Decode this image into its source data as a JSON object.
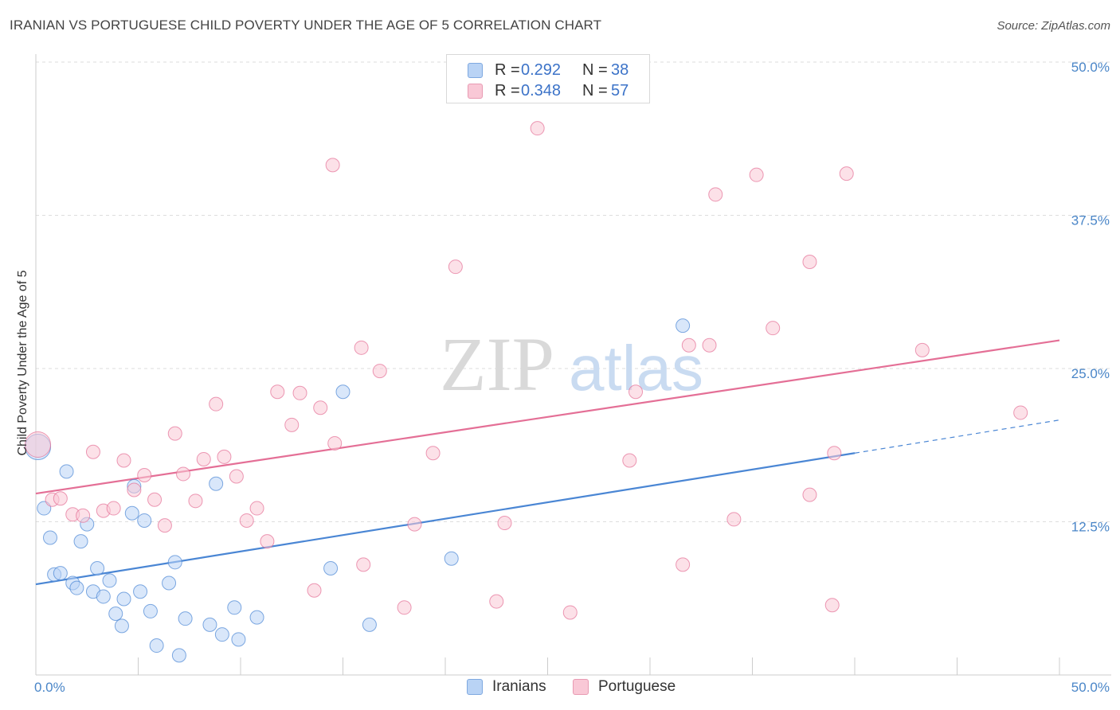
{
  "header": {
    "title": "IRANIAN VS PORTUGUESE CHILD POVERTY UNDER THE AGE OF 5 CORRELATION CHART",
    "source": "Source: ZipAtlas.com"
  },
  "watermark": {
    "zip": "ZIP",
    "atlas": "atlas"
  },
  "legend": {
    "r_label": "R =",
    "n_label": "N =",
    "entries": [
      {
        "name": "Iranians",
        "r": "0.292",
        "n": "38",
        "fill": "#b9d3f5",
        "stroke": "#7ea8e0"
      },
      {
        "name": "Portuguese",
        "r": "0.348",
        "n": "57",
        "fill": "#f9c8d6",
        "stroke": "#e89ab2"
      }
    ]
  },
  "chart_data": {
    "type": "scatter",
    "title": "IRANIAN VS PORTUGUESE CHILD POVERTY UNDER THE AGE OF 5 CORRELATION CHART",
    "xlabel": "",
    "ylabel": "Child Poverty Under the Age of 5",
    "xlim": [
      0,
      50
    ],
    "ylim": [
      0,
      50
    ],
    "x_tick_labels": [
      "0.0%",
      "50.0%"
    ],
    "y_ticks": [
      {
        "value": 12.5,
        "label": "12.5%"
      },
      {
        "value": 25,
        "label": "25.0%"
      },
      {
        "value": 37.5,
        "label": "37.5%"
      },
      {
        "value": 50,
        "label": "50.0%"
      }
    ],
    "grid": true,
    "series": [
      {
        "name": "Iranians",
        "color": "#4a86d4",
        "fill": "#b9d3f5",
        "trend": {
          "x0": 0,
          "y0": 7.4,
          "x1": 40,
          "y1": 18.1,
          "dash_to": 50,
          "dash_y": 20.8
        },
        "points": [
          {
            "x": 0.4,
            "y": 13.6
          },
          {
            "x": 0.7,
            "y": 11.2
          },
          {
            "x": 0.9,
            "y": 8.2
          },
          {
            "x": 1.2,
            "y": 8.3
          },
          {
            "x": 1.5,
            "y": 16.6
          },
          {
            "x": 1.8,
            "y": 7.5
          },
          {
            "x": 2.0,
            "y": 7.1
          },
          {
            "x": 2.2,
            "y": 10.9
          },
          {
            "x": 2.5,
            "y": 12.3
          },
          {
            "x": 2.8,
            "y": 6.8
          },
          {
            "x": 3.0,
            "y": 8.7
          },
          {
            "x": 3.3,
            "y": 6.4
          },
          {
            "x": 3.6,
            "y": 7.7
          },
          {
            "x": 3.9,
            "y": 5.0
          },
          {
            "x": 4.2,
            "y": 4.0
          },
          {
            "x": 4.3,
            "y": 6.2
          },
          {
            "x": 4.7,
            "y": 13.2
          },
          {
            "x": 4.8,
            "y": 15.4
          },
          {
            "x": 5.1,
            "y": 6.8
          },
          {
            "x": 5.3,
            "y": 12.6
          },
          {
            "x": 5.6,
            "y": 5.2
          },
          {
            "x": 5.9,
            "y": 2.4
          },
          {
            "x": 6.5,
            "y": 7.5
          },
          {
            "x": 6.8,
            "y": 9.2
          },
          {
            "x": 7.0,
            "y": 1.6
          },
          {
            "x": 7.3,
            "y": 4.6
          },
          {
            "x": 8.5,
            "y": 4.1
          },
          {
            "x": 8.8,
            "y": 15.6
          },
          {
            "x": 9.1,
            "y": 3.3
          },
          {
            "x": 9.7,
            "y": 5.5
          },
          {
            "x": 9.9,
            "y": 2.9
          },
          {
            "x": 10.8,
            "y": 4.7
          },
          {
            "x": 14.4,
            "y": 8.7
          },
          {
            "x": 15.0,
            "y": 23.1
          },
          {
            "x": 16.3,
            "y": 4.1
          },
          {
            "x": 20.3,
            "y": 9.5
          },
          {
            "x": 31.6,
            "y": 28.5
          },
          {
            "x": 0.1,
            "y": 18.6
          }
        ]
      },
      {
        "name": "Portuguese",
        "color": "#e46f96",
        "fill": "#f9c8d6",
        "trend": {
          "x0": 0,
          "y0": 14.8,
          "x1": 50,
          "y1": 27.3
        },
        "points": [
          {
            "x": 0.8,
            "y": 14.3
          },
          {
            "x": 1.2,
            "y": 14.4
          },
          {
            "x": 1.8,
            "y": 13.1
          },
          {
            "x": 2.3,
            "y": 13.0
          },
          {
            "x": 2.8,
            "y": 18.2
          },
          {
            "x": 3.3,
            "y": 13.4
          },
          {
            "x": 3.8,
            "y": 13.6
          },
          {
            "x": 4.3,
            "y": 17.5
          },
          {
            "x": 4.8,
            "y": 15.1
          },
          {
            "x": 5.3,
            "y": 16.3
          },
          {
            "x": 5.8,
            "y": 14.3
          },
          {
            "x": 6.3,
            "y": 12.2
          },
          {
            "x": 6.8,
            "y": 19.7
          },
          {
            "x": 7.2,
            "y": 16.4
          },
          {
            "x": 7.8,
            "y": 14.2
          },
          {
            "x": 8.2,
            "y": 17.6
          },
          {
            "x": 8.8,
            "y": 22.1
          },
          {
            "x": 9.2,
            "y": 17.8
          },
          {
            "x": 9.8,
            "y": 16.2
          },
          {
            "x": 10.3,
            "y": 12.6
          },
          {
            "x": 10.8,
            "y": 13.6
          },
          {
            "x": 11.3,
            "y": 10.9
          },
          {
            "x": 11.8,
            "y": 23.1
          },
          {
            "x": 12.5,
            "y": 20.4
          },
          {
            "x": 12.9,
            "y": 23.0
          },
          {
            "x": 13.6,
            "y": 6.9
          },
          {
            "x": 13.9,
            "y": 21.8
          },
          {
            "x": 14.5,
            "y": 41.6
          },
          {
            "x": 14.6,
            "y": 18.9
          },
          {
            "x": 15.9,
            "y": 26.7
          },
          {
            "x": 16.0,
            "y": 9.0
          },
          {
            "x": 16.8,
            "y": 24.8
          },
          {
            "x": 18.0,
            "y": 5.5
          },
          {
            "x": 18.5,
            "y": 12.3
          },
          {
            "x": 19.4,
            "y": 18.1
          },
          {
            "x": 20.5,
            "y": 33.3
          },
          {
            "x": 22.5,
            "y": 6.0
          },
          {
            "x": 22.9,
            "y": 12.4
          },
          {
            "x": 24.5,
            "y": 44.6
          },
          {
            "x": 26.1,
            "y": 5.1
          },
          {
            "x": 29.0,
            "y": 17.5
          },
          {
            "x": 29.3,
            "y": 23.1
          },
          {
            "x": 31.6,
            "y": 9.0
          },
          {
            "x": 31.9,
            "y": 26.9
          },
          {
            "x": 32.9,
            "y": 26.9
          },
          {
            "x": 33.2,
            "y": 39.2
          },
          {
            "x": 34.1,
            "y": 12.7
          },
          {
            "x": 35.2,
            "y": 40.8
          },
          {
            "x": 36.0,
            "y": 28.3
          },
          {
            "x": 37.8,
            "y": 33.7
          },
          {
            "x": 37.8,
            "y": 14.7
          },
          {
            "x": 38.9,
            "y": 5.7
          },
          {
            "x": 39.0,
            "y": 18.1
          },
          {
            "x": 39.6,
            "y": 40.9
          },
          {
            "x": 43.3,
            "y": 26.5
          },
          {
            "x": 48.1,
            "y": 21.4
          },
          {
            "x": 0.1,
            "y": 18.8
          }
        ]
      }
    ]
  }
}
